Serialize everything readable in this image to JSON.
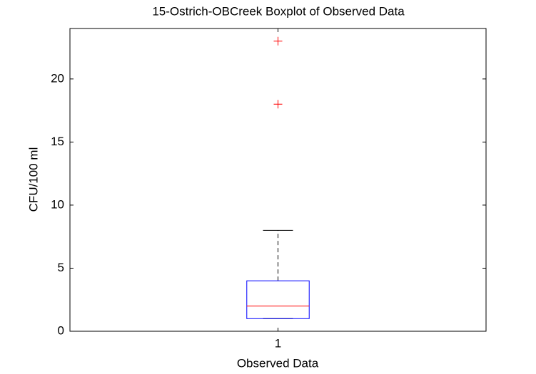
{
  "chart_data": {
    "type": "box",
    "title": "15-Ostrich-OBCreek Boxplot of Observed Data",
    "x_label": "Observed Data",
    "y_label": "CFU/100 ml",
    "categories": [
      "1"
    ],
    "boxes": [
      {
        "min": 1,
        "q1": 1,
        "median": 2,
        "q3": 4,
        "max": 8,
        "outliers": [
          18,
          23
        ]
      }
    ],
    "box_color": "#0000ff",
    "median_color": "#ff0000",
    "whisker_color": "#000000",
    "outlier_color": "#ff0000",
    "ylim": [
      0,
      24
    ],
    "yticks": [
      0,
      5,
      10,
      15,
      20
    ],
    "grid": false
  }
}
